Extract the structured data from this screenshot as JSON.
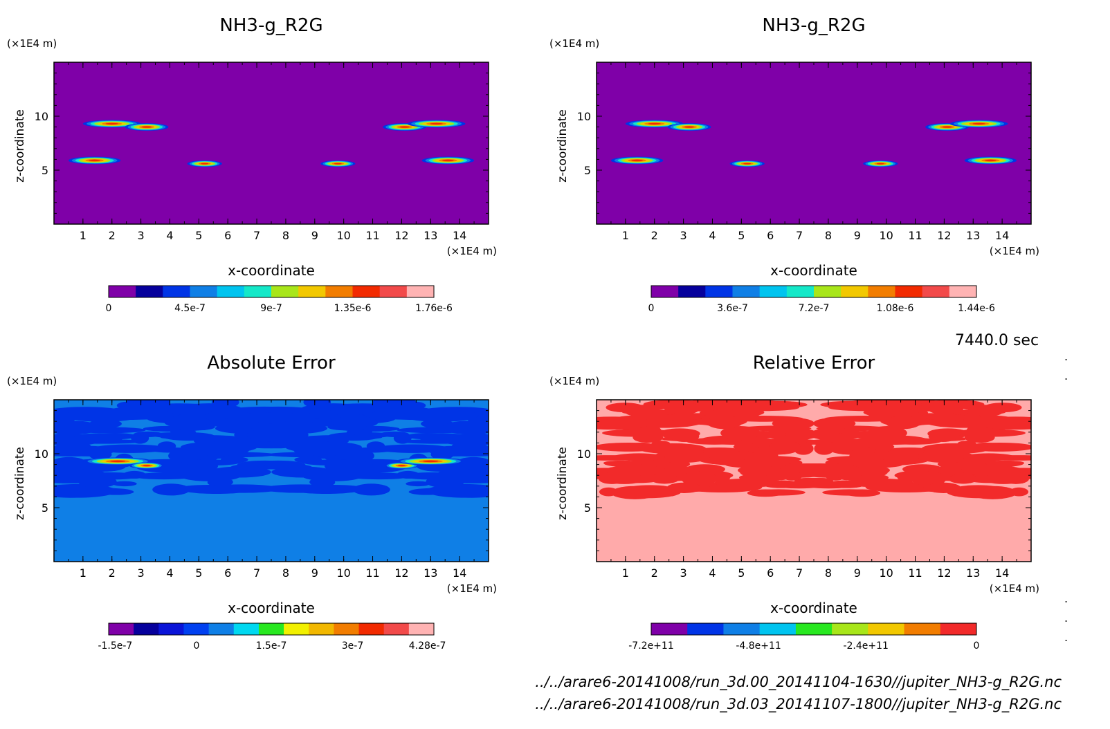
{
  "time_label": "7440.0 sec",
  "file_paths": [
    "../../arare6-20141008/run_3d.00_20141104-1630//jupiter_NH3-g_R2G.nc",
    "../../arare6-20141008/run_3d.03_20141107-1800//jupiter_NH3-g_R2G.nc"
  ],
  "chart_data": [
    {
      "type": "heatmap",
      "title": "NH3-g_R2G",
      "xlabel": "x-coordinate",
      "ylabel": "z-coordinate",
      "x_unit": "(×1E4 m)",
      "y_unit": "(×1E4 m)",
      "xlim": [
        0,
        15
      ],
      "ylim": [
        0,
        15
      ],
      "xticks": [
        "1",
        "2",
        "3",
        "4",
        "5",
        "6",
        "7",
        "8",
        "9",
        "10",
        "11",
        "12",
        "13",
        "14"
      ],
      "yticks": [
        "5",
        "10"
      ],
      "background_color": "#7f00a8",
      "blobs": [
        {
          "x": 2.0,
          "z": 9.3,
          "rx": 1.0,
          "rz": 0.35
        },
        {
          "x": 3.2,
          "z": 9.0,
          "rx": 0.75,
          "rz": 0.35
        },
        {
          "x": 12.1,
          "z": 9.0,
          "rx": 0.75,
          "rz": 0.35
        },
        {
          "x": 13.2,
          "z": 9.3,
          "rx": 1.0,
          "rz": 0.35
        },
        {
          "x": 1.4,
          "z": 5.9,
          "rx": 0.9,
          "rz": 0.35
        },
        {
          "x": 5.2,
          "z": 5.6,
          "rx": 0.6,
          "rz": 0.3
        },
        {
          "x": 9.8,
          "z": 5.6,
          "rx": 0.6,
          "rz": 0.3
        },
        {
          "x": 13.6,
          "z": 5.9,
          "rx": 0.9,
          "rz": 0.35
        }
      ],
      "colorbar": {
        "colors": [
          "#7f00a8",
          "#06009c",
          "#0034e6",
          "#0f7fe6",
          "#00c4ef",
          "#14e8c8",
          "#a8e61a",
          "#f2c800",
          "#f27d00",
          "#f22a00",
          "#f24a4a",
          "#ffb3b3"
        ],
        "labels": [
          "0",
          "4.5e-7",
          "9e-7",
          "1.35e-6",
          "1.76e-6"
        ],
        "label_positions": [
          0,
          0.25,
          0.5,
          0.75,
          1.0
        ]
      }
    },
    {
      "type": "heatmap",
      "title": "NH3-g_R2G",
      "xlabel": "x-coordinate",
      "ylabel": "z-coordinate",
      "x_unit": "(×1E4 m)",
      "y_unit": "(×1E4 m)",
      "xlim": [
        0,
        15
      ],
      "ylim": [
        0,
        15
      ],
      "xticks": [
        "1",
        "2",
        "3",
        "4",
        "5",
        "6",
        "7",
        "8",
        "9",
        "10",
        "11",
        "12",
        "13",
        "14"
      ],
      "yticks": [
        "5",
        "10"
      ],
      "background_color": "#7f00a8",
      "blobs": [
        {
          "x": 2.0,
          "z": 9.3,
          "rx": 1.0,
          "rz": 0.35
        },
        {
          "x": 3.2,
          "z": 9.0,
          "rx": 0.75,
          "rz": 0.35
        },
        {
          "x": 12.1,
          "z": 9.0,
          "rx": 0.75,
          "rz": 0.35
        },
        {
          "x": 13.2,
          "z": 9.3,
          "rx": 1.0,
          "rz": 0.35
        },
        {
          "x": 1.4,
          "z": 5.9,
          "rx": 0.9,
          "rz": 0.35
        },
        {
          "x": 5.2,
          "z": 5.6,
          "rx": 0.6,
          "rz": 0.3
        },
        {
          "x": 9.8,
          "z": 5.6,
          "rx": 0.6,
          "rz": 0.3
        },
        {
          "x": 13.6,
          "z": 5.9,
          "rx": 0.9,
          "rz": 0.35
        }
      ],
      "colorbar": {
        "colors": [
          "#7f00a8",
          "#06009c",
          "#0034e6",
          "#0f7fe6",
          "#00c4ef",
          "#14e8c8",
          "#a8e61a",
          "#f2c800",
          "#f27d00",
          "#f22a00",
          "#f24a4a",
          "#ffb3b3"
        ],
        "labels": [
          "0",
          "3.6e-7",
          "7.2e-7",
          "1.08e-6",
          "1.44e-6"
        ],
        "label_positions": [
          0,
          0.25,
          0.5,
          0.75,
          1.0
        ]
      }
    },
    {
      "type": "heatmap",
      "title": "Absolute Error",
      "xlabel": "x-coordinate",
      "ylabel": "z-coordinate",
      "x_unit": "(×1E4 m)",
      "y_unit": "(×1E4 m)",
      "xlim": [
        0,
        15
      ],
      "ylim": [
        0,
        15
      ],
      "xticks": [
        "1",
        "2",
        "3",
        "4",
        "5",
        "6",
        "7",
        "8",
        "9",
        "10",
        "11",
        "12",
        "13",
        "14"
      ],
      "yticks": [
        "5",
        "10"
      ],
      "background_color": "#0f7fe6",
      "pattern_color": "#0034e6",
      "blobs": [
        {
          "x": 2.2,
          "z": 9.3,
          "rx": 1.2,
          "rz": 0.35
        },
        {
          "x": 3.2,
          "z": 8.9,
          "rx": 0.6,
          "rz": 0.3
        },
        {
          "x": 12.0,
          "z": 8.9,
          "rx": 0.6,
          "rz": 0.3
        },
        {
          "x": 13.0,
          "z": 9.3,
          "rx": 1.2,
          "rz": 0.35
        }
      ],
      "colorbar": {
        "colors": [
          "#7f00a8",
          "#06009c",
          "#0a14d8",
          "#0040f0",
          "#0f7fe6",
          "#00d8f0",
          "#28e820",
          "#f2f000",
          "#f2b800",
          "#f27d00",
          "#f22a00",
          "#f24a4a",
          "#ffb3b3"
        ],
        "labels": [
          "-1.5e-7",
          "0",
          "1.5e-7",
          "3e-7",
          "4.28e-7"
        ],
        "label_positions": [
          0.02,
          0.27,
          0.5,
          0.75,
          0.98
        ]
      }
    },
    {
      "type": "heatmap",
      "title": "Relative Error",
      "xlabel": "x-coordinate",
      "ylabel": "z-coordinate",
      "x_unit": "(×1E4 m)",
      "y_unit": "(×1E4 m)",
      "xlim": [
        0,
        15
      ],
      "ylim": [
        0,
        15
      ],
      "xticks": [
        "1",
        "2",
        "3",
        "4",
        "5",
        "6",
        "7",
        "8",
        "9",
        "10",
        "11",
        "12",
        "13",
        "14"
      ],
      "yticks": [
        "5",
        "10"
      ],
      "background_color": "#ffaaaa",
      "pattern_color": "#f22a2a",
      "blobs": [],
      "colorbar": {
        "colors": [
          "#7f00a8",
          "#0034e6",
          "#0f7fe6",
          "#00c4ef",
          "#28e820",
          "#a8e61a",
          "#f2c800",
          "#f27d00",
          "#f22a2a"
        ],
        "labels": [
          "-7.2e+11",
          "-4.8e+11",
          "-2.4e+11",
          "0"
        ],
        "label_positions": [
          0.0,
          0.33,
          0.66,
          1.0
        ]
      }
    }
  ]
}
